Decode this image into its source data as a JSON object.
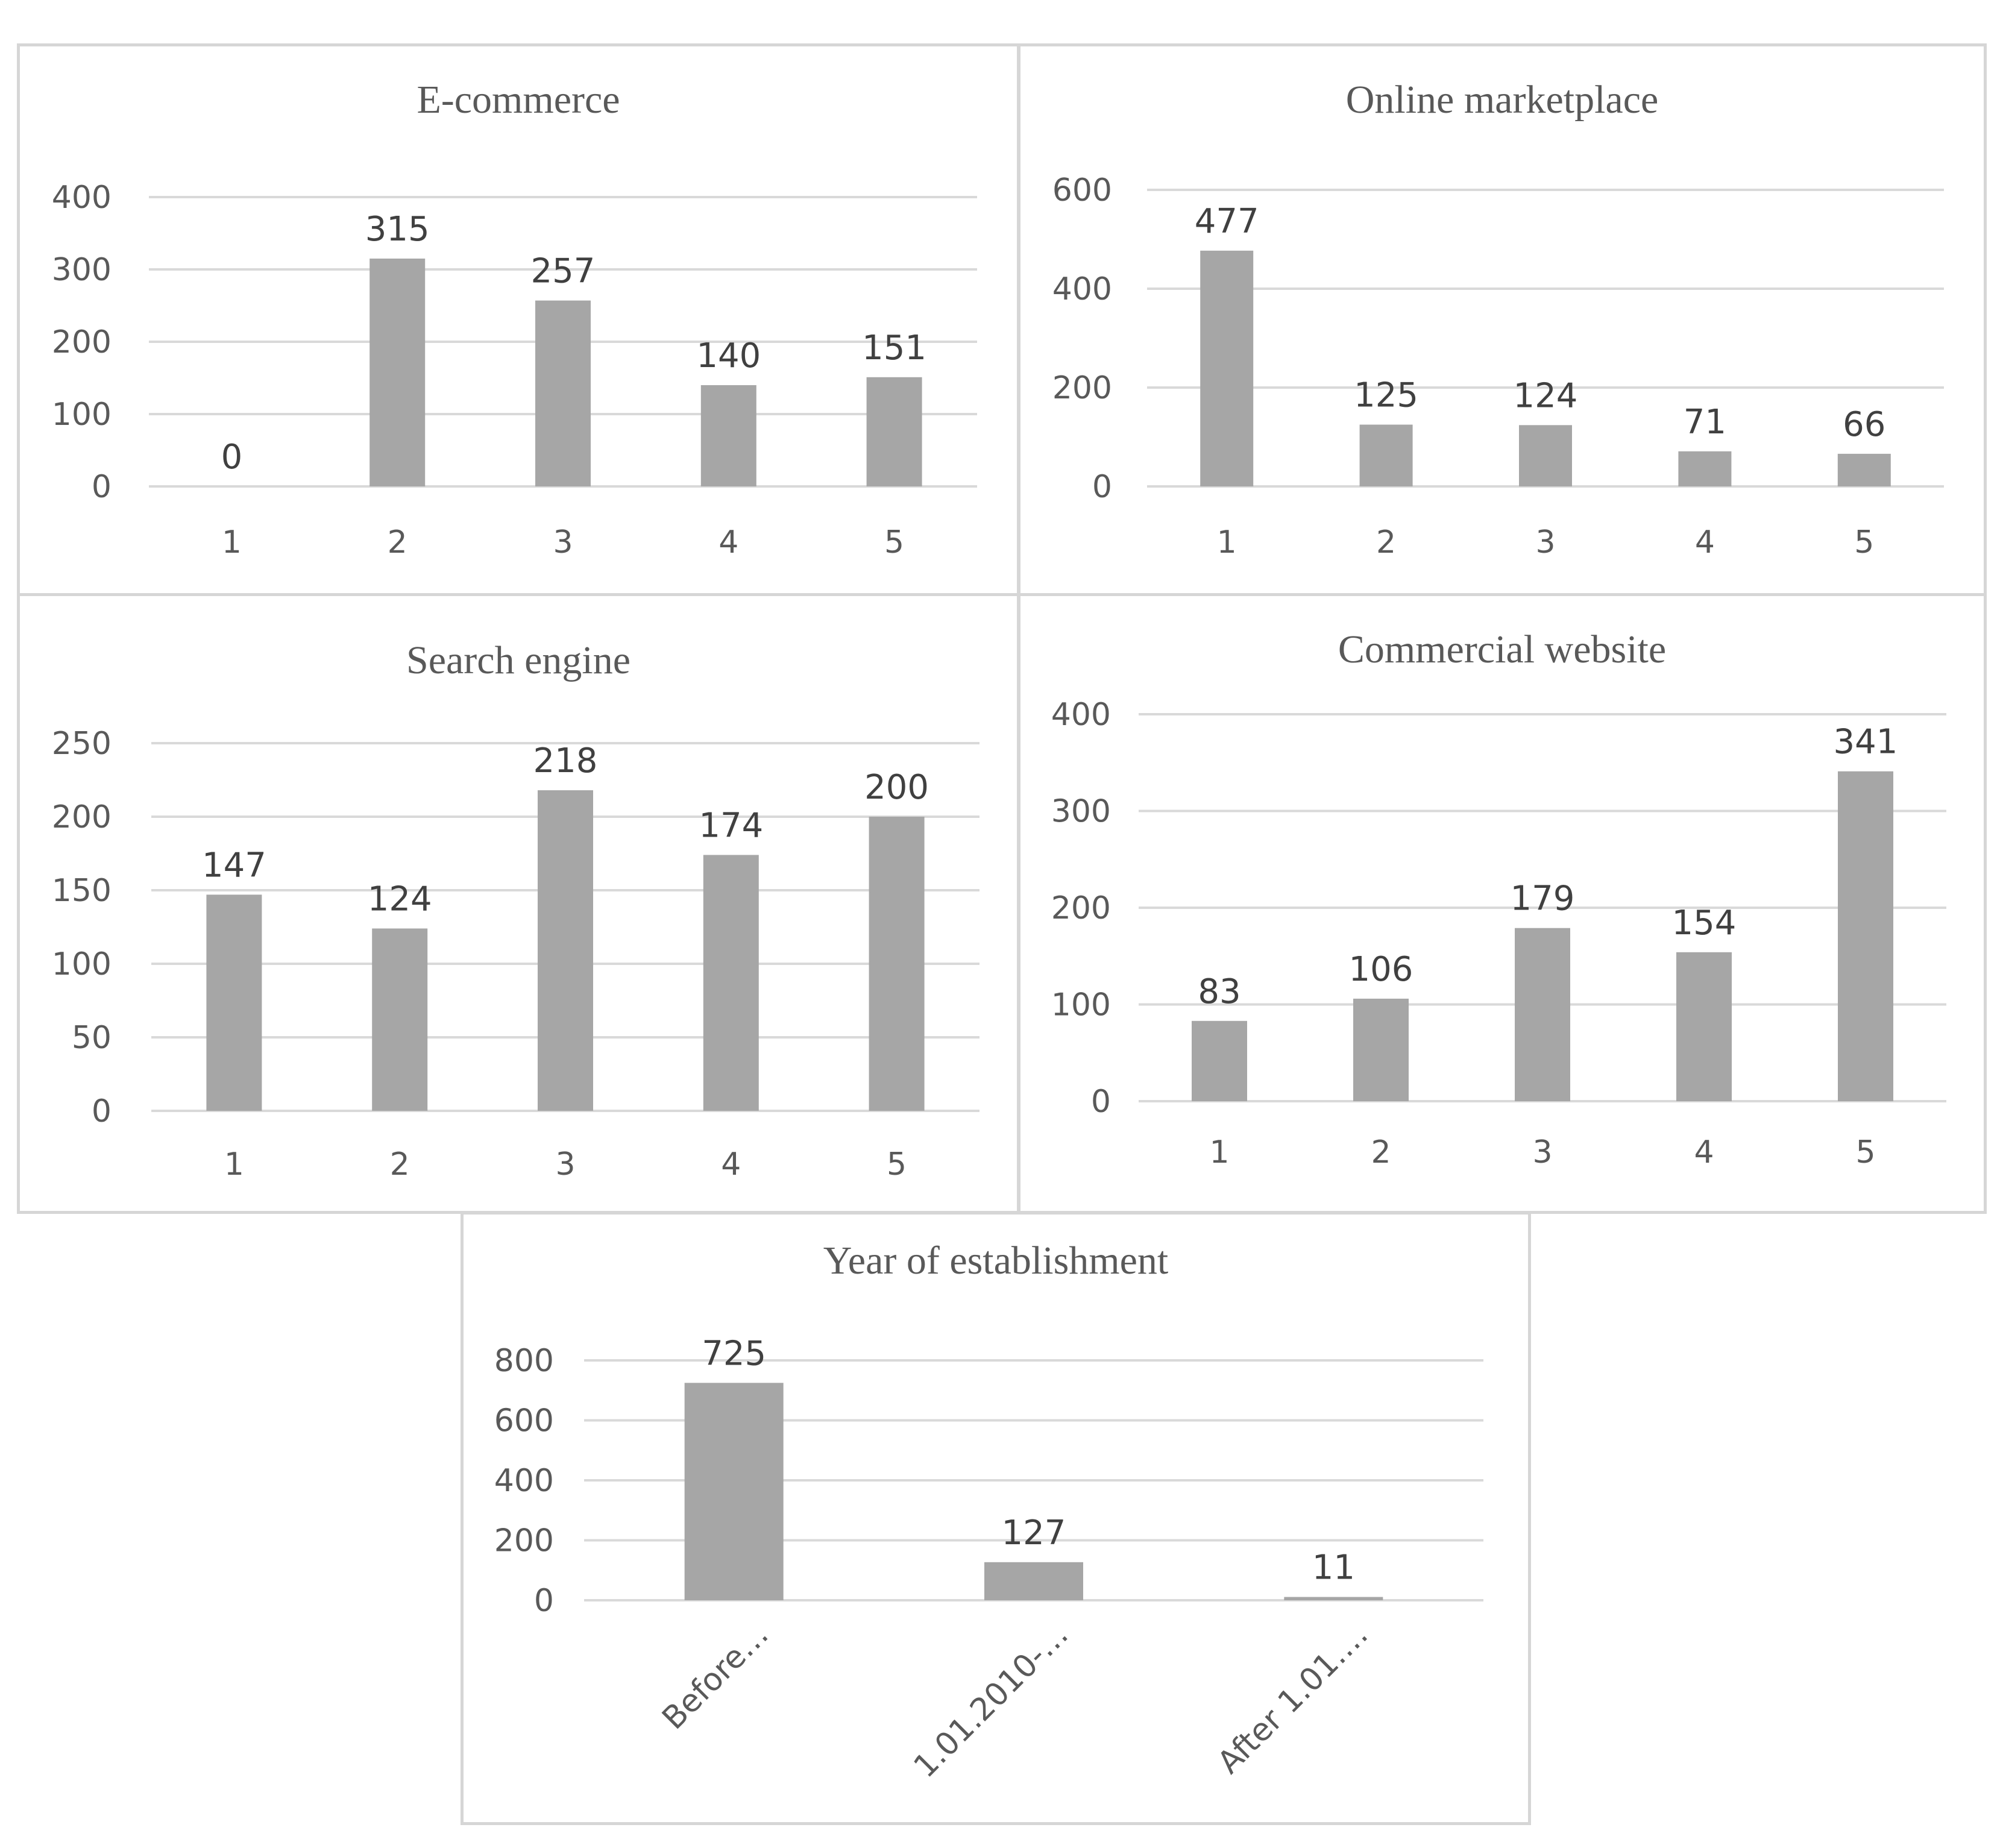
{
  "chart_data": [
    {
      "type": "bar",
      "title": "E-commerce",
      "categories": [
        "1",
        "2",
        "3",
        "4",
        "5"
      ],
      "values": [
        0,
        315,
        257,
        140,
        151
      ],
      "yticks": [
        "0",
        "100",
        "200",
        "300",
        "400"
      ],
      "ylim": [
        0,
        400
      ],
      "xlabel": "",
      "ylabel": "",
      "grid": true,
      "bar_color": "#a6a6a6"
    },
    {
      "type": "bar",
      "title": "Online marketplace",
      "categories": [
        "1",
        "2",
        "3",
        "4",
        "5"
      ],
      "values": [
        477,
        125,
        124,
        71,
        66
      ],
      "yticks": [
        "0",
        "200",
        "400",
        "600"
      ],
      "ylim": [
        0,
        600
      ],
      "xlabel": "",
      "ylabel": "",
      "grid": true,
      "bar_color": "#a6a6a6"
    },
    {
      "type": "bar",
      "title": "Search engine",
      "categories": [
        "1",
        "2",
        "3",
        "4",
        "5"
      ],
      "values": [
        147,
        124,
        218,
        174,
        200
      ],
      "yticks": [
        "0",
        "50",
        "100",
        "150",
        "200",
        "250"
      ],
      "ylim": [
        0,
        250
      ],
      "xlabel": "",
      "ylabel": "",
      "grid": true,
      "bar_color": "#aeaaaa"
    },
    {
      "type": "bar",
      "title": "Commercial website",
      "categories": [
        "1",
        "2",
        "3",
        "4",
        "5"
      ],
      "values": [
        83,
        106,
        179,
        154,
        341
      ],
      "yticks": [
        "0",
        "100",
        "200",
        "300",
        "400"
      ],
      "ylim": [
        0,
        400
      ],
      "xlabel": "",
      "ylabel": "",
      "grid": true,
      "bar_color": "#a6a6a6"
    },
    {
      "type": "bar",
      "title": "Year of establishment",
      "categories": [
        "Before…",
        "1.01.2010-…",
        "After 1.01.…"
      ],
      "values": [
        725,
        127,
        11
      ],
      "yticks": [
        "0",
        "200",
        "400",
        "600",
        "800"
      ],
      "ylim": [
        0,
        800
      ],
      "xlabel": "",
      "ylabel": "",
      "grid": true,
      "bar_color": "#a6a6a6"
    }
  ]
}
